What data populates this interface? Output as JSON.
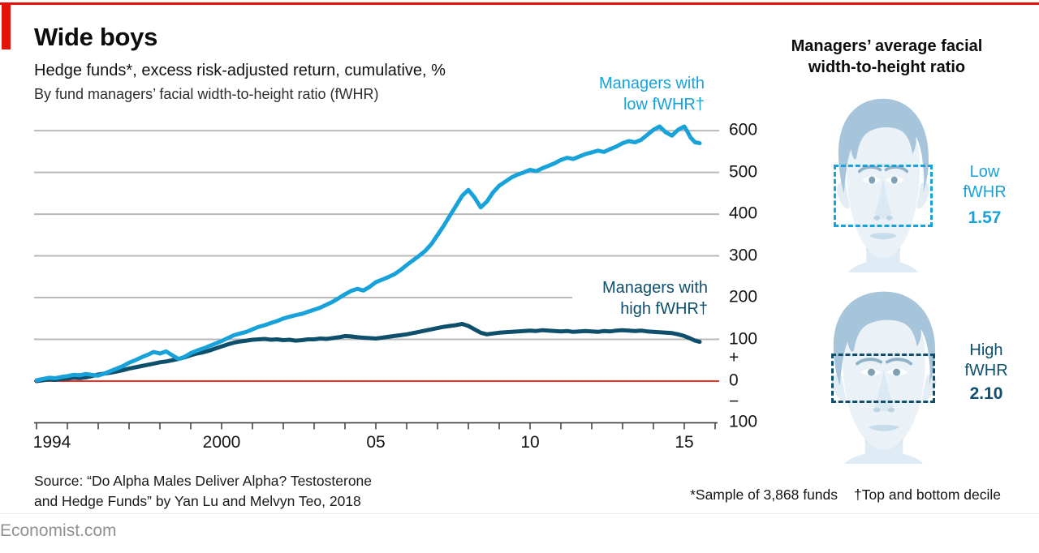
{
  "page": {
    "title": "Wide boys",
    "subtitle": "Hedge funds*, excess risk-adjusted return, cumulative, %",
    "byline": "By fund managers’ facial width-to-height ratio (fWHR)",
    "source": "Source: “Do Alpha Males Deliver Alpha? Testosterone\nand Hedge Funds” by Yan Lu and Melvyn Teo, 2018",
    "footnote_sample": "*Sample of 3,868 funds",
    "footnote_decile": "†Top and bottom decile",
    "site": "Economist.com"
  },
  "colors": {
    "accent_red": "#e3120b",
    "zero_line": "#ee1507",
    "grid": "#b9b9b9",
    "axis": "#3c3c3c",
    "line_low": "#18a2da",
    "line_high": "#0e506b",
    "face_skin": "#eaf2f8",
    "face_hair": "#a6c5db",
    "text_gray": "#8f9191"
  },
  "series_labels": {
    "low": "Managers with\nlow fWHR†",
    "high": "Managers with\nhigh fWHR†"
  },
  "panel": {
    "title": "Managers’ average facial\nwidth-to-height ratio",
    "low": {
      "label": "Low\nfWHR",
      "value": "1.57"
    },
    "high": {
      "label": "High\nfWHR",
      "value": "2.10"
    }
  },
  "chart_data": {
    "type": "line",
    "title": "Hedge funds, excess risk-adjusted return, cumulative, %",
    "xlabel": "",
    "ylabel": "",
    "xlim": [
      1994,
      2016
    ],
    "ylim": [
      -100,
      620
    ],
    "grid": true,
    "legend_position": "inline-labels",
    "y_gridlines": [
      600,
      500,
      400,
      300,
      200,
      100
    ],
    "zero_line": 0,
    "y_axis_labels": [
      {
        "label": "600",
        "value": 600
      },
      {
        "label": "500",
        "value": 500
      },
      {
        "label": "400",
        "value": 400
      },
      {
        "label": "300",
        "value": 300
      },
      {
        "label": "200",
        "value": 200
      },
      {
        "label": "100",
        "value": 100
      },
      {
        "label": "+",
        "value": 55
      },
      {
        "label": "0",
        "value": 0
      },
      {
        "label": "−",
        "value": -50
      },
      {
        "label": "100",
        "value": -100
      }
    ],
    "x_ticks_years": [
      1994,
      1995,
      1996,
      1997,
      1998,
      1999,
      2000,
      2001,
      2002,
      2003,
      2004,
      2005,
      2006,
      2007,
      2008,
      2009,
      2010,
      2011,
      2012,
      2013,
      2014,
      2015,
      2016
    ],
    "x_tick_labels": [
      {
        "year": 1994,
        "label": "1994"
      },
      {
        "year": 2000,
        "label": "2000"
      },
      {
        "year": 2005,
        "label": "05"
      },
      {
        "year": 2010,
        "label": "10"
      },
      {
        "year": 2015,
        "label": "15"
      }
    ],
    "series": [
      {
        "name": "Managers with high fWHR†",
        "color": "#0e506b",
        "points": [
          [
            1994.0,
            0
          ],
          [
            1994.2,
            2
          ],
          [
            1994.4,
            4
          ],
          [
            1994.6,
            3
          ],
          [
            1994.8,
            5
          ],
          [
            1995.0,
            6
          ],
          [
            1995.2,
            8
          ],
          [
            1995.4,
            7
          ],
          [
            1995.6,
            9
          ],
          [
            1995.8,
            12
          ],
          [
            1996.0,
            16
          ],
          [
            1996.2,
            18
          ],
          [
            1996.4,
            20
          ],
          [
            1996.6,
            23
          ],
          [
            1996.8,
            26
          ],
          [
            1997.0,
            30
          ],
          [
            1997.2,
            33
          ],
          [
            1997.4,
            36
          ],
          [
            1997.6,
            39
          ],
          [
            1997.8,
            42
          ],
          [
            1998.0,
            45
          ],
          [
            1998.2,
            47
          ],
          [
            1998.4,
            50
          ],
          [
            1998.6,
            53
          ],
          [
            1998.8,
            57
          ],
          [
            1999.0,
            62
          ],
          [
            1999.2,
            66
          ],
          [
            1999.4,
            69
          ],
          [
            1999.6,
            73
          ],
          [
            1999.8,
            78
          ],
          [
            2000.0,
            83
          ],
          [
            2000.2,
            88
          ],
          [
            2000.4,
            92
          ],
          [
            2000.6,
            95
          ],
          [
            2000.8,
            97
          ],
          [
            2001.0,
            99
          ],
          [
            2001.2,
            100
          ],
          [
            2001.4,
            101
          ],
          [
            2001.6,
            99
          ],
          [
            2001.8,
            100
          ],
          [
            2002.0,
            98
          ],
          [
            2002.2,
            99
          ],
          [
            2002.4,
            97
          ],
          [
            2002.6,
            98
          ],
          [
            2002.8,
            100
          ],
          [
            2003.0,
            100
          ],
          [
            2003.2,
            102
          ],
          [
            2003.4,
            101
          ],
          [
            2003.6,
            103
          ],
          [
            2003.8,
            105
          ],
          [
            2004.0,
            108
          ],
          [
            2004.2,
            107
          ],
          [
            2004.4,
            105
          ],
          [
            2004.6,
            104
          ],
          [
            2004.8,
            103
          ],
          [
            2005.0,
            102
          ],
          [
            2005.2,
            104
          ],
          [
            2005.4,
            106
          ],
          [
            2005.6,
            108
          ],
          [
            2005.8,
            110
          ],
          [
            2006.0,
            112
          ],
          [
            2006.2,
            115
          ],
          [
            2006.4,
            118
          ],
          [
            2006.6,
            121
          ],
          [
            2006.8,
            124
          ],
          [
            2007.0,
            127
          ],
          [
            2007.2,
            130
          ],
          [
            2007.4,
            132
          ],
          [
            2007.6,
            134
          ],
          [
            2007.8,
            137
          ],
          [
            2008.0,
            132
          ],
          [
            2008.2,
            124
          ],
          [
            2008.4,
            116
          ],
          [
            2008.6,
            112
          ],
          [
            2008.8,
            114
          ],
          [
            2009.0,
            116
          ],
          [
            2009.2,
            117
          ],
          [
            2009.4,
            118
          ],
          [
            2009.6,
            119
          ],
          [
            2009.8,
            120
          ],
          [
            2010.0,
            121
          ],
          [
            2010.2,
            120
          ],
          [
            2010.4,
            122
          ],
          [
            2010.6,
            121
          ],
          [
            2010.8,
            120
          ],
          [
            2011.0,
            119
          ],
          [
            2011.2,
            120
          ],
          [
            2011.4,
            118
          ],
          [
            2011.6,
            119
          ],
          [
            2011.8,
            120
          ],
          [
            2012.0,
            119
          ],
          [
            2012.2,
            118
          ],
          [
            2012.4,
            120
          ],
          [
            2012.6,
            119
          ],
          [
            2012.8,
            121
          ],
          [
            2013.0,
            122
          ],
          [
            2013.2,
            121
          ],
          [
            2013.4,
            120
          ],
          [
            2013.6,
            121
          ],
          [
            2013.8,
            119
          ],
          [
            2014.0,
            118
          ],
          [
            2014.2,
            117
          ],
          [
            2014.4,
            116
          ],
          [
            2014.6,
            115
          ],
          [
            2014.8,
            112
          ],
          [
            2015.0,
            108
          ],
          [
            2015.2,
            102
          ],
          [
            2015.35,
            97
          ],
          [
            2015.5,
            94
          ]
        ]
      },
      {
        "name": "Managers with low fWHR†",
        "color": "#18a2da",
        "points": [
          [
            1994.0,
            2
          ],
          [
            1994.2,
            5
          ],
          [
            1994.4,
            8
          ],
          [
            1994.6,
            7
          ],
          [
            1994.8,
            10
          ],
          [
            1995.0,
            12
          ],
          [
            1995.2,
            15
          ],
          [
            1995.4,
            14
          ],
          [
            1995.6,
            17
          ],
          [
            1995.8,
            15
          ],
          [
            1996.0,
            13
          ],
          [
            1996.2,
            18
          ],
          [
            1996.4,
            24
          ],
          [
            1996.6,
            30
          ],
          [
            1996.8,
            36
          ],
          [
            1997.0,
            44
          ],
          [
            1997.2,
            50
          ],
          [
            1997.4,
            57
          ],
          [
            1997.6,
            63
          ],
          [
            1997.8,
            70
          ],
          [
            1998.0,
            66
          ],
          [
            1998.2,
            71
          ],
          [
            1998.4,
            62
          ],
          [
            1998.6,
            53
          ],
          [
            1998.8,
            58
          ],
          [
            1999.0,
            67
          ],
          [
            1999.2,
            73
          ],
          [
            1999.4,
            78
          ],
          [
            1999.6,
            84
          ],
          [
            1999.8,
            90
          ],
          [
            2000.0,
            96
          ],
          [
            2000.2,
            103
          ],
          [
            2000.4,
            110
          ],
          [
            2000.6,
            114
          ],
          [
            2000.8,
            118
          ],
          [
            2001.0,
            124
          ],
          [
            2001.2,
            130
          ],
          [
            2001.4,
            134
          ],
          [
            2001.6,
            139
          ],
          [
            2001.8,
            144
          ],
          [
            2002.0,
            150
          ],
          [
            2002.2,
            154
          ],
          [
            2002.4,
            158
          ],
          [
            2002.6,
            161
          ],
          [
            2002.8,
            166
          ],
          [
            2003.0,
            171
          ],
          [
            2003.2,
            176
          ],
          [
            2003.4,
            183
          ],
          [
            2003.6,
            190
          ],
          [
            2003.8,
            199
          ],
          [
            2004.0,
            208
          ],
          [
            2004.2,
            216
          ],
          [
            2004.4,
            221
          ],
          [
            2004.6,
            217
          ],
          [
            2004.8,
            226
          ],
          [
            2005.0,
            237
          ],
          [
            2005.2,
            243
          ],
          [
            2005.4,
            249
          ],
          [
            2005.6,
            256
          ],
          [
            2005.8,
            266
          ],
          [
            2006.0,
            278
          ],
          [
            2006.2,
            289
          ],
          [
            2006.4,
            300
          ],
          [
            2006.6,
            312
          ],
          [
            2006.8,
            328
          ],
          [
            2007.0,
            350
          ],
          [
            2007.2,
            372
          ],
          [
            2007.4,
            396
          ],
          [
            2007.6,
            420
          ],
          [
            2007.8,
            444
          ],
          [
            2008.0,
            458
          ],
          [
            2008.2,
            440
          ],
          [
            2008.4,
            416
          ],
          [
            2008.6,
            430
          ],
          [
            2008.8,
            452
          ],
          [
            2009.0,
            468
          ],
          [
            2009.2,
            478
          ],
          [
            2009.4,
            488
          ],
          [
            2009.6,
            495
          ],
          [
            2009.8,
            500
          ],
          [
            2010.0,
            506
          ],
          [
            2010.2,
            503
          ],
          [
            2010.4,
            510
          ],
          [
            2010.6,
            516
          ],
          [
            2010.8,
            522
          ],
          [
            2011.0,
            530
          ],
          [
            2011.2,
            535
          ],
          [
            2011.4,
            532
          ],
          [
            2011.6,
            538
          ],
          [
            2011.8,
            544
          ],
          [
            2012.0,
            548
          ],
          [
            2012.2,
            552
          ],
          [
            2012.4,
            549
          ],
          [
            2012.6,
            556
          ],
          [
            2012.8,
            562
          ],
          [
            2013.0,
            570
          ],
          [
            2013.2,
            575
          ],
          [
            2013.4,
            572
          ],
          [
            2013.6,
            578
          ],
          [
            2013.8,
            590
          ],
          [
            2014.0,
            602
          ],
          [
            2014.2,
            610
          ],
          [
            2014.4,
            596
          ],
          [
            2014.6,
            588
          ],
          [
            2014.8,
            602
          ],
          [
            2015.0,
            610
          ],
          [
            2015.1,
            598
          ],
          [
            2015.2,
            584
          ],
          [
            2015.35,
            572
          ],
          [
            2015.5,
            570
          ]
        ]
      }
    ]
  }
}
